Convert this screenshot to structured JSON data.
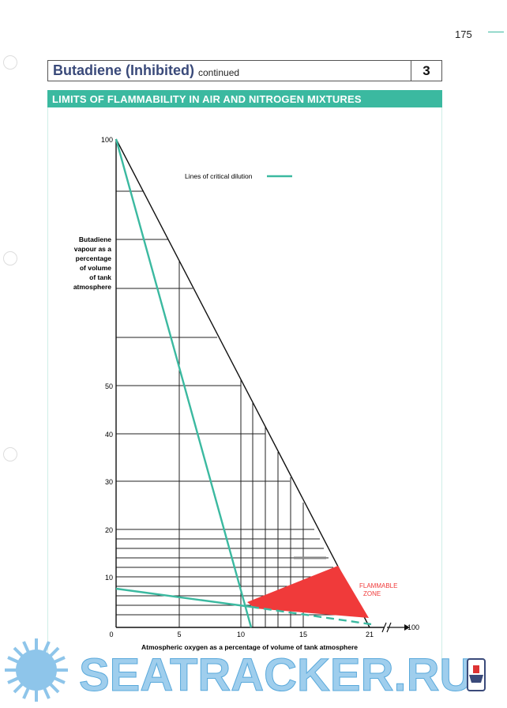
{
  "page": {
    "number": "175"
  },
  "header": {
    "title": "Butadiene (Inhibited)",
    "subtitle": "continued",
    "section_number": "3"
  },
  "banner": {
    "text": "LIMITS OF FLAMMABILITY IN AIR AND NITROGEN MIXTURES"
  },
  "chart": {
    "legend_text": "Lines of critical dilution",
    "ylabel_lines": [
      "Butadiene",
      "vapour as a",
      "percentage",
      "of volume",
      "of tank",
      "atmosphere"
    ],
    "xlabel": "Atmospheric oxygen as a percentage of volume of tank atmosphere",
    "y_ticks": [
      "100",
      "50",
      "40",
      "30",
      "20",
      "10"
    ],
    "x_ticks": [
      "0",
      "5",
      "10",
      "15",
      "21"
    ],
    "x_end_label": "100",
    "zone_label_lines": [
      "FLAMMABLE",
      "ZONE"
    ],
    "colors": {
      "critical_line": "#3bb9a0",
      "flammable": "#f03a3a",
      "accent": "#3bb9a0"
    }
  },
  "watermark": {
    "text": "SEATRACKER.RU"
  }
}
